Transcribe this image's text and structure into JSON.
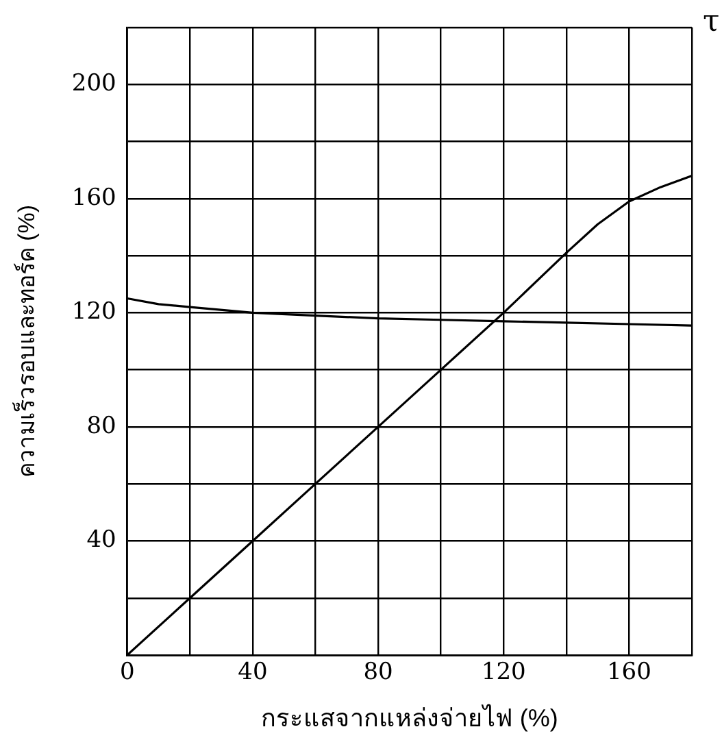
{
  "chart_data": {
    "type": "line",
    "xlabel": "กระแสจากแหล่งจ่ายไฟ (%)",
    "ylabel": "ความเร็วรอบและทอร์ค (%)",
    "annotations": [
      "τ"
    ],
    "series": [
      {
        "color": "#000000",
        "x": [
          0,
          10,
          20,
          40,
          60,
          80,
          100,
          120,
          140,
          160,
          180
        ],
        "values": [
          125,
          123,
          122,
          120,
          119,
          118,
          117.5,
          117,
          116.5,
          116,
          115.5
        ]
      },
      {
        "color": "#000000",
        "x": [
          0,
          20,
          40,
          60,
          80,
          100,
          120,
          140,
          150,
          160,
          170,
          180
        ],
        "values": [
          0,
          20,
          40,
          60,
          80,
          100,
          120,
          141,
          151,
          159,
          164,
          168
        ]
      }
    ],
    "xlim": [
      0,
      180
    ],
    "xticks": [
      0,
      {
        "value": 20,
        "label": null
      },
      40,
      {
        "value": 60,
        "label": null
      },
      80,
      {
        "value": 100,
        "label": null
      },
      120,
      {
        "value": 140,
        "label": null
      },
      160,
      {
        "value": 180,
        "label": null
      }
    ],
    "ylim": [
      0,
      220
    ],
    "yticks": [
      {
        "value": 0,
        "label": null
      },
      {
        "value": 20,
        "label": null
      },
      40,
      {
        "value": 60,
        "label": null
      },
      80,
      {
        "value": 100,
        "label": null
      },
      120,
      {
        "value": 140,
        "label": null
      },
      160,
      {
        "value": 180,
        "label": null
      },
      200,
      {
        "value": 220,
        "label": null
      }
    ],
    "grid": true,
    "legend": false,
    "marker": "none",
    "line_style": "solid"
  }
}
